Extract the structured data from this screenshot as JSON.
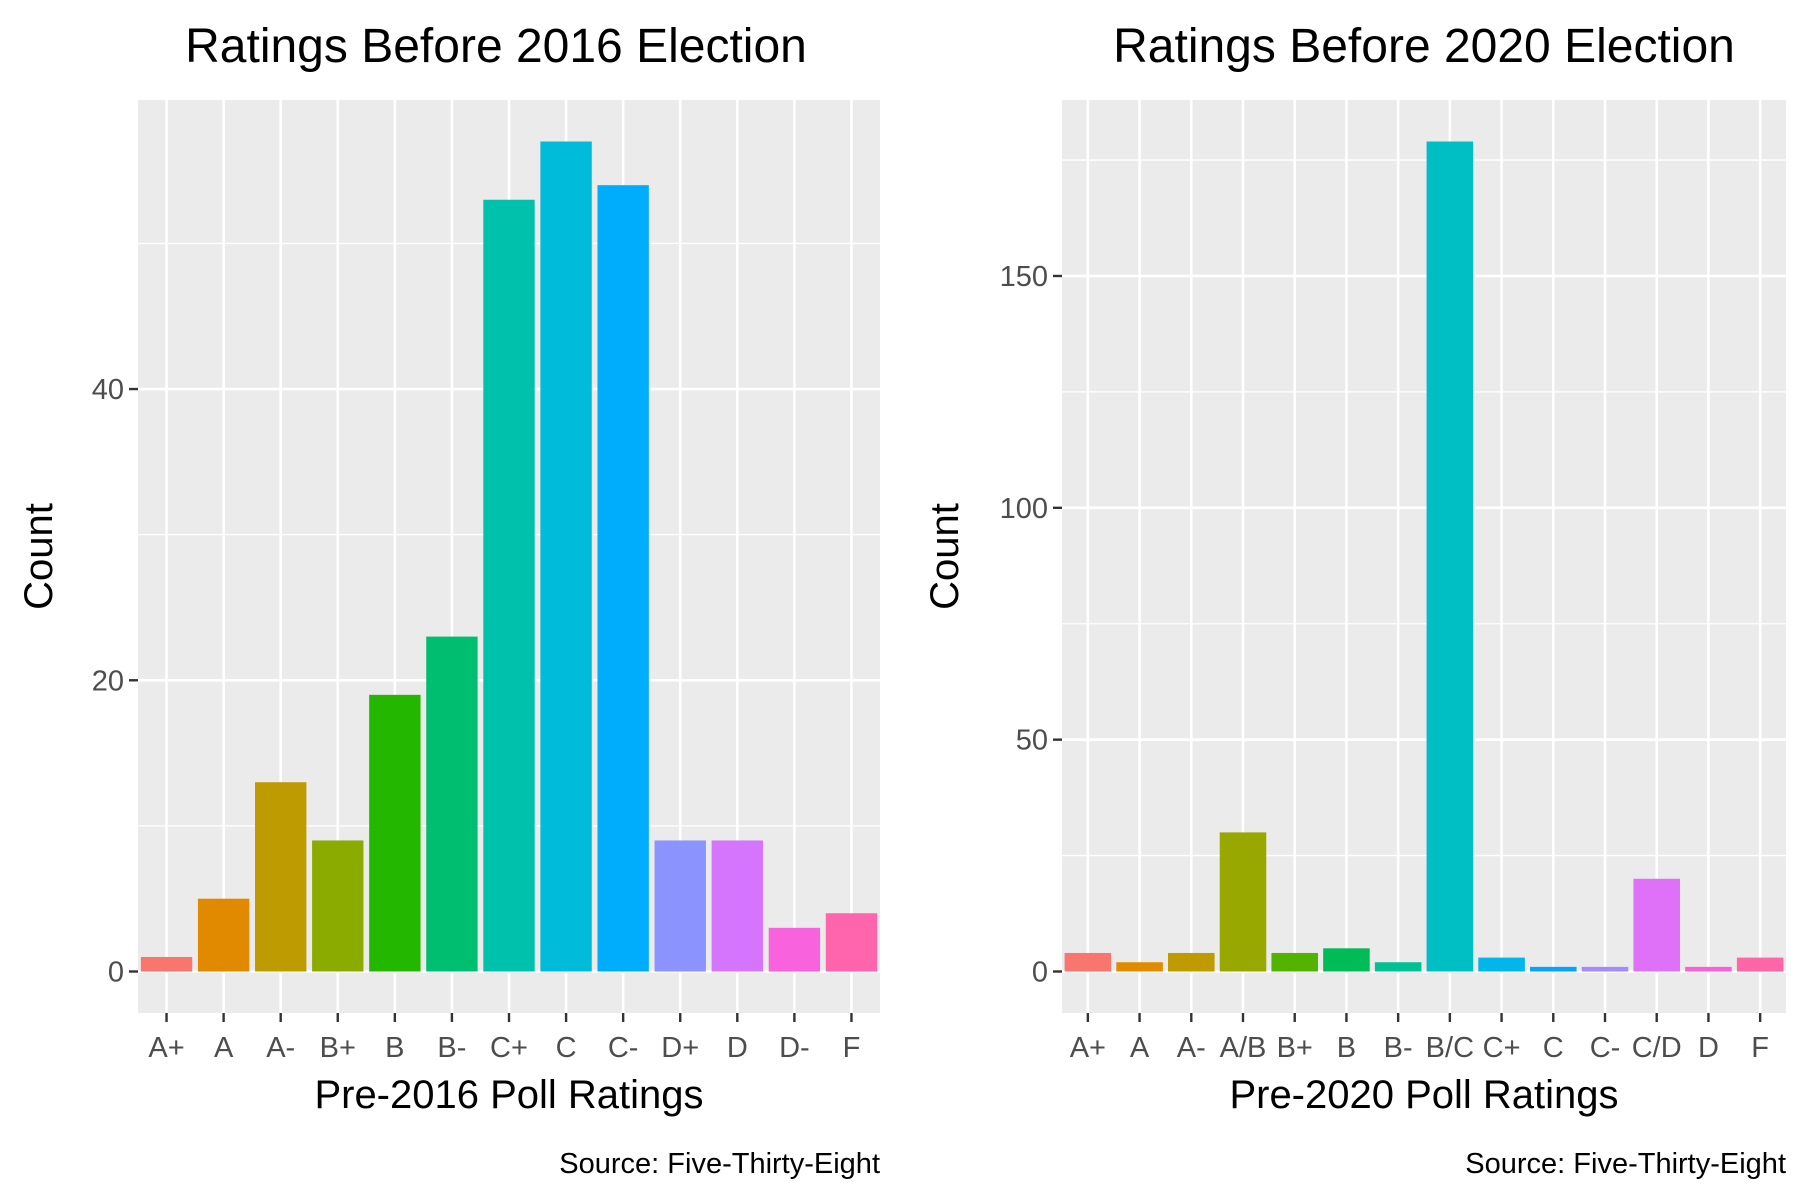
{
  "chart_data": [
    {
      "type": "bar",
      "title": "Ratings Before 2016 Election",
      "xlabel": "Pre-2016 Poll Ratings",
      "ylabel": "Count",
      "caption": "Source: Five-Thirty-Eight",
      "categories": [
        "A+",
        "A",
        "A-",
        "B+",
        "B",
        "B-",
        "C+",
        "C",
        "C-",
        "D+",
        "D",
        "D-",
        "F"
      ],
      "values": [
        1,
        5,
        13,
        9,
        19,
        23,
        53,
        57,
        54,
        9,
        9,
        3,
        4
      ],
      "colors": [
        "#F8766D",
        "#E18A00",
        "#BE9C00",
        "#8CAB00",
        "#24B700",
        "#00BE70",
        "#00C1AB",
        "#00BBDA",
        "#00ACFC",
        "#8B93FF",
        "#D575FE",
        "#F962DD",
        "#FF65AC"
      ],
      "ylim": [
        -2.85,
        59.85
      ],
      "yticks": [
        0,
        20,
        40
      ],
      "grid": true,
      "background": "#EBEBEB"
    },
    {
      "type": "bar",
      "title": "Ratings Before 2020 Election",
      "xlabel": "Pre-2020 Poll Ratings",
      "ylabel": "Count",
      "caption": "Source: Five-Thirty-Eight",
      "categories": [
        "A+",
        "A",
        "A-",
        "A/B",
        "B+",
        "B",
        "B-",
        "B/C",
        "C+",
        "C",
        "C-",
        "C/D",
        "D",
        "F"
      ],
      "values": [
        4,
        2,
        4,
        30,
        4,
        5,
        2,
        179,
        3,
        1,
        1,
        20,
        1,
        3
      ],
      "colors": [
        "#F8766D",
        "#E08B00",
        "#C09B00",
        "#99A800",
        "#53B400",
        "#00BC56",
        "#00C094",
        "#00BFC4",
        "#00B6EB",
        "#06A4FF",
        "#A58AFF",
        "#DF70F8",
        "#FB61D7",
        "#FF66A8"
      ],
      "ylim": [
        -8.95,
        187.95
      ],
      "yticks": [
        0,
        50,
        100,
        150
      ],
      "grid": true,
      "background": "#EBEBEB"
    }
  ]
}
